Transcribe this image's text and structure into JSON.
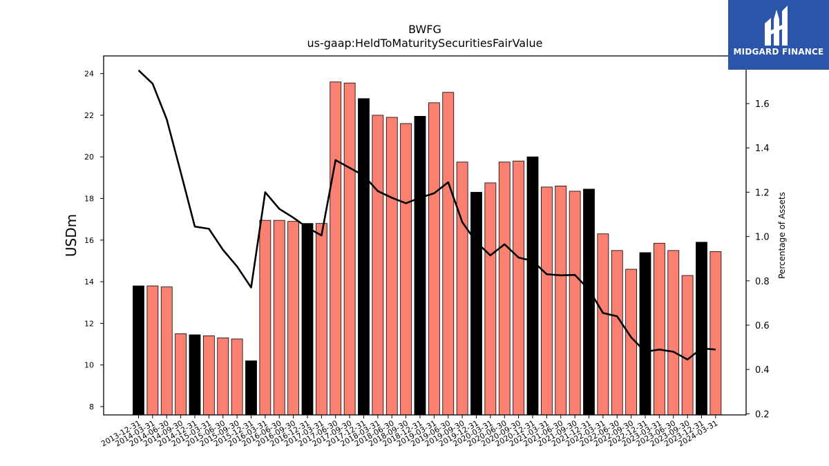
{
  "chart_data": {
    "type": "bar",
    "title": "BWFG",
    "subtitle": "us-gaap:HeldToMaturitySecuritiesFairValue",
    "ylabel": "USDm",
    "y2label": "Percentage of Assets",
    "ylim": [
      7.6,
      24.85
    ],
    "y2lim": [
      0.195,
      1.815
    ],
    "yticks": [
      8,
      10,
      12,
      14,
      16,
      18,
      20,
      22,
      24
    ],
    "y2ticks": [
      0.2,
      0.4,
      0.6,
      0.8,
      1.0,
      1.2,
      1.4,
      1.6
    ],
    "grid": false,
    "colors": {
      "annual": "#000000",
      "quarter": "#fa8072",
      "line": "#000000"
    },
    "categories": [
      "2013-12-31",
      "2014-03-31",
      "2014-06-30",
      "2014-09-30",
      "2014-12-31",
      "2015-03-31",
      "2015-06-30",
      "2015-09-30",
      "2015-12-31",
      "2016-03-31",
      "2016-06-30",
      "2016-09-30",
      "2016-12-31",
      "2017-03-31",
      "2017-06-30",
      "2017-09-30",
      "2017-12-31",
      "2018-03-31",
      "2018-06-30",
      "2018-09-30",
      "2018-12-31",
      "2019-03-31",
      "2019-06-30",
      "2019-09-30",
      "2019-12-31",
      "2020-03-31",
      "2020-06-30",
      "2020-09-30",
      "2020-12-31",
      "2021-03-31",
      "2021-06-30",
      "2021-09-30",
      "2021-12-31",
      "2022-03-31",
      "2022-06-30",
      "2022-09-30",
      "2022-12-31",
      "2023-03-31",
      "2023-06-30",
      "2023-09-30",
      "2023-12-31",
      "2024-03-31"
    ],
    "series": [
      {
        "values": [
          13.8,
          13.8,
          13.75,
          11.5,
          11.45,
          11.4,
          11.3,
          11.25,
          10.2,
          16.95,
          16.95,
          16.9,
          16.8,
          16.8,
          23.6,
          23.55,
          22.8,
          22.0,
          21.9,
          21.6,
          21.95,
          22.6,
          23.1,
          19.75,
          18.3,
          18.75,
          19.75,
          19.8,
          20.0,
          18.55,
          18.6,
          18.35,
          18.45,
          16.3,
          15.5,
          14.6,
          15.4,
          15.85,
          15.5,
          14.3,
          15.9,
          15.45
        ]
      },
      {
        "axis": "right",
        "values": [
          1.75,
          1.69,
          1.53,
          1.29,
          1.045,
          1.035,
          0.94,
          0.865,
          0.77,
          1.2,
          1.125,
          1.085,
          1.04,
          1.005,
          1.345,
          1.31,
          1.275,
          1.205,
          1.175,
          1.15,
          1.175,
          1.195,
          1.245,
          1.065,
          0.975,
          0.915,
          0.965,
          0.905,
          0.89,
          0.83,
          0.825,
          0.827,
          0.76,
          0.655,
          0.64,
          0.545,
          0.48,
          0.49,
          0.48,
          0.445,
          0.495,
          0.49
        ]
      }
    ]
  },
  "logo": {
    "text": "MIDGARD FINANCE"
  }
}
